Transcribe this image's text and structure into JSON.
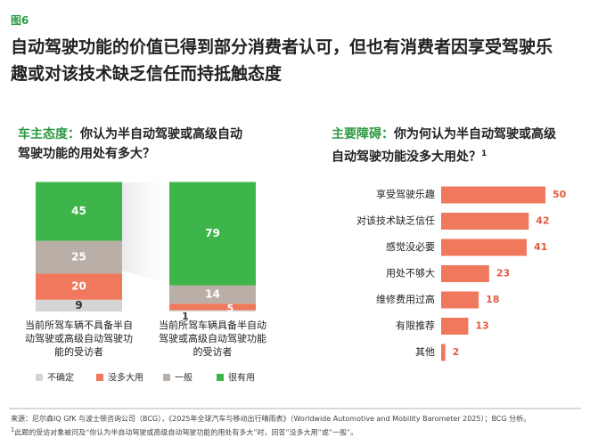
{
  "figure_label": "图6",
  "title": "自动驾驶功能的价值已得到部分消费者认可，但也有消费者因享受驾驶乐趣或对该技术缺乏信任而持抵触态度",
  "chart_data": [
    {
      "type": "stacked_bar",
      "subtitle_prefix": "车主态度：",
      "subtitle": "你认为半自动驾驶或高级自动驾驶功能的用处有多大？",
      "categories": [
        "当前所驾车辆不具备半自动驾驶或高级自动驾驶功能的受访者",
        "当前所驾车辆具备半自动驾驶或高级自动驾驶功能的受访者"
      ],
      "series": [
        {
          "name": "不确定",
          "color": "#d5d5d5",
          "values": [
            9,
            1
          ]
        },
        {
          "name": "没多大用",
          "color": "#f0785c",
          "values": [
            20,
            5
          ]
        },
        {
          "name": "一般",
          "color": "#b9afa6",
          "values": [
            25,
            14
          ]
        },
        {
          "name": "很有用",
          "color": "#3db54a",
          "values": [
            45,
            79
          ]
        }
      ]
    },
    {
      "type": "hbar",
      "subtitle_prefix": "主要障碍：",
      "subtitle": "你为何认为半自动驾驶或高级自动驾驶功能没多大用处？",
      "subtitle_note": "1",
      "categories": [
        "享受驾驶乐趣",
        "对该技术缺乏信任",
        "感觉没必要",
        "用处不够大",
        "维修费用过高",
        "有限推荐",
        "其他"
      ],
      "values": [
        50,
        42,
        41,
        23,
        18,
        13,
        2
      ],
      "color": "#f0785c"
    }
  ],
  "source": "来源：尼尔森IQ GfK 与波士顿咨询公司（BCG），《2025年全球汽车与移动出行晴雨表》（Worldwide Automotive and Mobility Barometer 2025）；BCG 分析。",
  "note_marker": "1",
  "note": "此题的受访对象被问及“你认为半自动驾驶或高级自动驾驶功能的用处有多大”时，回答“没多大用”或“一般”。"
}
